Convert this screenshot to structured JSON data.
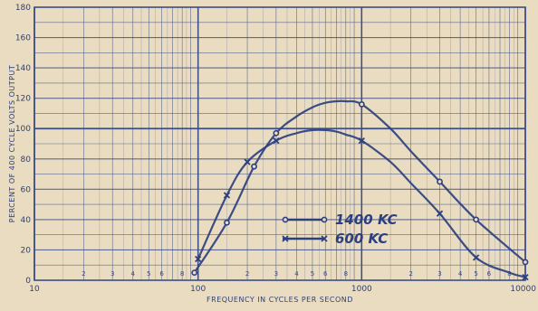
{
  "chart_data": {
    "type": "line",
    "title": "",
    "xlabel": "FREQUENCY IN CYCLES PER SECOND",
    "ylabel": "PERCENT OF 400 CYCLE VOLTS OUTPUT",
    "xscale": "log",
    "xlim": [
      10,
      10000
    ],
    "ylim": [
      0,
      180
    ],
    "grid": true,
    "legend_position": "center-right",
    "x_tick_labels": [
      "10",
      "100",
      "1000",
      "10000"
    ],
    "minor_tick_labels": [
      "2",
      "3",
      "4",
      "5",
      "6",
      "8"
    ],
    "y_tick_labels": [
      "0",
      "20",
      "40",
      "60",
      "80",
      "100",
      "120",
      "140",
      "160",
      "180"
    ],
    "series": [
      {
        "name": "1400 KC",
        "marker": "circle",
        "x": [
          95,
          150,
          220,
          300,
          400,
          500,
          600,
          700,
          800,
          1000,
          1500,
          2000,
          3000,
          5000,
          10000
        ],
        "y": [
          5,
          38,
          75,
          97,
          108,
          114,
          117,
          118,
          118,
          116,
          100,
          85,
          65,
          40,
          12
        ]
      },
      {
        "name": "600 KC",
        "marker": "x",
        "x": [
          100,
          150,
          200,
          300,
          400,
          500,
          600,
          700,
          800,
          1000,
          1500,
          2000,
          3000,
          5000,
          8000,
          10000
        ],
        "y": [
          14,
          56,
          78,
          92,
          97,
          99,
          99,
          98,
          96,
          92,
          78,
          64,
          44,
          15,
          5,
          2
        ]
      }
    ],
    "colors": {
      "background": "#e9dcc0",
      "grid": "#3c4d86",
      "line": "#2c3f80"
    }
  }
}
